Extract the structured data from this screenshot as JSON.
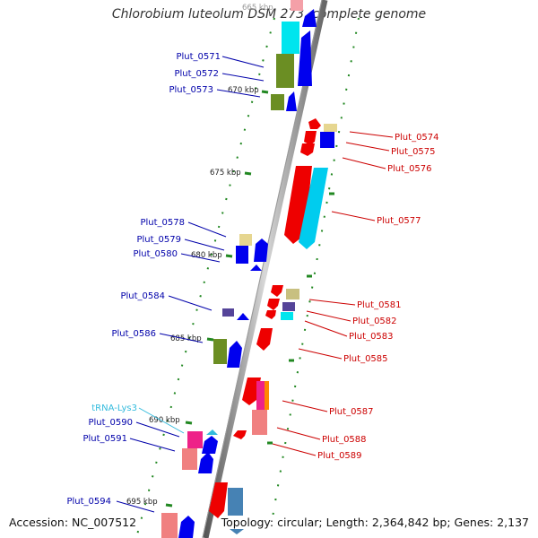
{
  "title": "Chlorobium luteolum DSM 273, complete genome",
  "accession": "Accession: NC_007512",
  "topology": "Topology: circular; Length: 2,364,842 bp; Genes: 2,137",
  "kbp_labels": [
    "665 kbp",
    "670 kbp",
    "675 kbp",
    "680 kbp",
    "685 kbp",
    "690 kbp",
    "695 kbp"
  ],
  "left_labels": [
    "Plut_0571",
    "Plut_0572",
    "Plut_0573",
    "Plut_0578",
    "Plut_0579",
    "Plut_0580",
    "Plut_0584",
    "Plut_0586",
    "tRNA-Lys3",
    "Plut_0590",
    "Plut_0591",
    "Plut_0594"
  ],
  "right_labels": [
    "Plut_0574",
    "Plut_0575",
    "Plut_0576",
    "Plut_0577",
    "Plut_0581",
    "Plut_0582",
    "Plut_0583",
    "Plut_0585",
    "Plut_0587",
    "Plut_0588",
    "Plut_0589"
  ],
  "colors": {
    "forward_label": "#0000aa",
    "reverse_label": "#cc0000",
    "trna_label": "#33bbdd",
    "tick": "#228822",
    "backbone": "#888888"
  }
}
